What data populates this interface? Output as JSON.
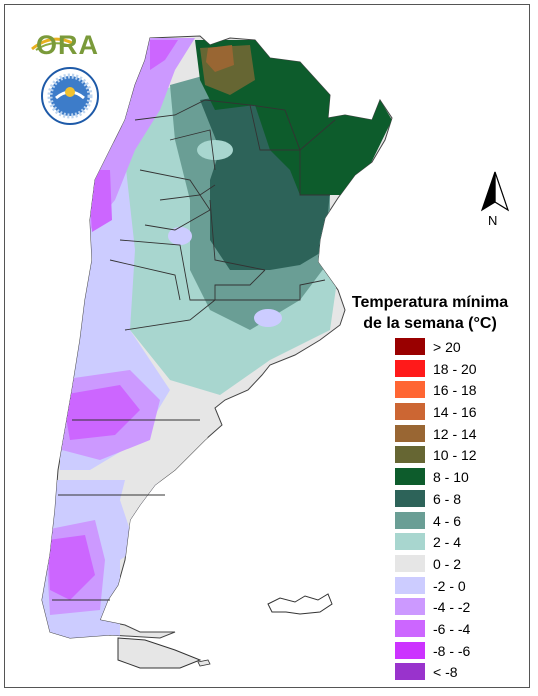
{
  "logo": {
    "text": "ORA",
    "seal": "servicio-meteorologico-seal-icon"
  },
  "north_arrow": {
    "label": "N"
  },
  "legend": {
    "title_line1": "Temperatura mínima",
    "title_line2": "de la semana (°C)",
    "items": [
      {
        "label": "> 20",
        "color": "#990000"
      },
      {
        "label": "18 - 20",
        "color": "#ff1a1a"
      },
      {
        "label": "16 - 18",
        "color": "#ff6633"
      },
      {
        "label": "14 - 16",
        "color": "#cc6633"
      },
      {
        "label": "12 - 14",
        "color": "#996633"
      },
      {
        "label": "10 - 12",
        "color": "#666633"
      },
      {
        "label": "8 - 10",
        "color": "#0d5c2c"
      },
      {
        "label": "6 - 8",
        "color": "#2d6359"
      },
      {
        "label": "4 - 6",
        "color": "#6a9e95"
      },
      {
        "label": "2 - 4",
        "color": "#a8d6cf"
      },
      {
        "label": "0 - 2",
        "color": "#e6e6e6"
      },
      {
        "label": "-2 - 0",
        "color": "#ccccff"
      },
      {
        "label": "-4 - -2",
        "color": "#cc99ff"
      },
      {
        "label": "-6 - -4",
        "color": "#cc66ff"
      },
      {
        "label": "-8 - -6",
        "color": "#cc33ff"
      },
      {
        "label": "< -8",
        "color": "#9933cc"
      }
    ]
  },
  "map": {
    "country": "argentina-map",
    "zone_colors": {
      "wf": "#ccccff",
      "light": "#e6e6e6",
      "mint": "#a8d6cf",
      "teal": "#6a9e95",
      "dteal": "#2d6359",
      "green": "#0d5c2c",
      "olive": "#666633",
      "brown": "#996633",
      "lilac": "#cc99ff",
      "violet": "#cc66ff"
    }
  }
}
